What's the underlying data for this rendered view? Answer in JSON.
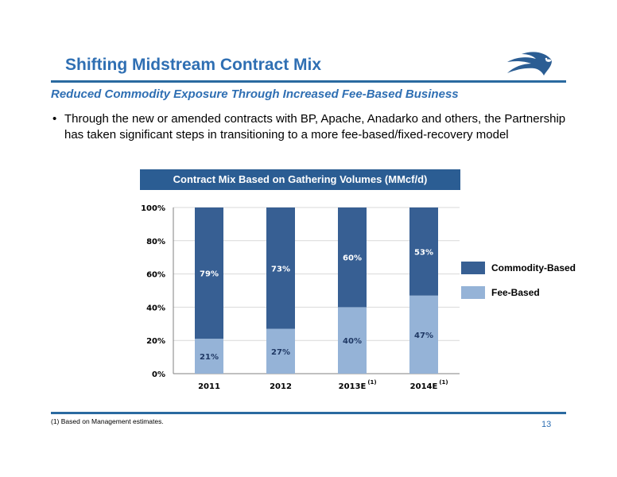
{
  "header": {
    "title": "Shifting Midstream Contract Mix",
    "subtitle": "Reduced Commodity Exposure Through Increased Fee-Based Business"
  },
  "logo_icon": "eagle-head-icon",
  "bullet": {
    "marker": "•",
    "text": "Through the new or amended contracts with BP, Apache, Anadarko and others, the Partnership has taken significant steps in transitioning to a more fee-based/fixed-recovery model"
  },
  "chart_header": "Contract Mix Based on Gathering Volumes (MMcf/d)",
  "chart_data": {
    "type": "bar",
    "stacked": true,
    "categories": [
      "2011",
      "2012",
      "2013E",
      "2014E"
    ],
    "category_footnotes": [
      "",
      "",
      "(1)",
      "(1)"
    ],
    "series": [
      {
        "name": "Fee-Based",
        "values": [
          21,
          27,
          40,
          47
        ],
        "labels": [
          "21%",
          "27%",
          "40%",
          "47%"
        ],
        "color": "#95b3d7"
      },
      {
        "name": "Commodity-Based",
        "values": [
          79,
          73,
          60,
          53
        ],
        "labels": [
          "79%",
          "73%",
          "60%",
          "53%"
        ],
        "color": "#375f93"
      }
    ],
    "y_ticks": [
      "0%",
      "20%",
      "40%",
      "60%",
      "80%",
      "100%"
    ],
    "ylim": [
      0,
      100
    ],
    "grid": true,
    "legend": "right"
  },
  "legend": [
    {
      "label": "Commodity-Based",
      "color": "#375f93"
    },
    {
      "label": "Fee-Based",
      "color": "#95b3d7"
    }
  ],
  "footnote": "(1) Based on Management estimates.",
  "page_number": "13",
  "colors": {
    "title": "#2f6fb3",
    "rule": "#2a6aa0",
    "header_bg": "#2b5d93"
  }
}
